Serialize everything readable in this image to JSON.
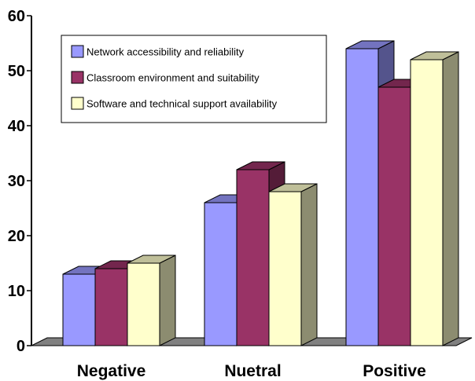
{
  "chart_data": {
    "type": "bar",
    "categories": [
      "Negative",
      "Nuetral",
      "Positive"
    ],
    "series": [
      {
        "name": "Network accessibility and reliability",
        "values": [
          13,
          26,
          54
        ],
        "color": "#9999FF"
      },
      {
        "name": "Classroom environment and suitability",
        "values": [
          14,
          32,
          47
        ],
        "color": "#993366"
      },
      {
        "name": "Software and technical support availability",
        "values": [
          15,
          28,
          52
        ],
        "color": "#FFFFCC"
      }
    ],
    "ylim": [
      0,
      60
    ],
    "yticks": [
      0,
      10,
      20,
      30,
      40,
      50,
      60
    ],
    "legend_position": "top-left",
    "grid": false,
    "floor_color": "#808080",
    "three_d": true
  }
}
